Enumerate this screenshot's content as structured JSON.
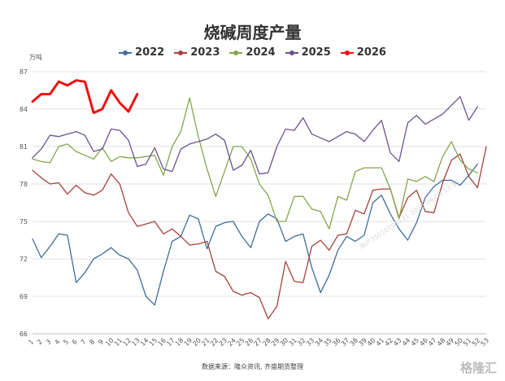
{
  "chart_data": {
    "type": "line",
    "title": "烧碱周度产量",
    "unit_label": "万吨",
    "ylim": [
      66,
      87
    ],
    "y_ticks": [
      66,
      69,
      72,
      75,
      78,
      81,
      84,
      87
    ],
    "x_ticks": [
      "1",
      "2",
      "3",
      "4",
      "5",
      "6",
      "7",
      "8",
      "9",
      "10",
      "11",
      "12",
      "13",
      "14",
      "15",
      "16",
      "17",
      "18",
      "19",
      "20",
      "21",
      "22",
      "23",
      "24",
      "25",
      "26",
      "27",
      "28",
      "29",
      "30",
      "31",
      "32",
      "33",
      "34",
      "35",
      "36",
      "37",
      "38",
      "39",
      "40",
      "41",
      "42",
      "43",
      "44",
      "45",
      "46",
      "47",
      "48",
      "49",
      "50",
      "51",
      "52",
      "53"
    ],
    "grid": "horizontal",
    "legend_position": "top",
    "series": [
      {
        "name": "2022",
        "color": "#3f6e9c",
        "width": 1.3,
        "values": [
          73.6,
          72.1,
          73.0,
          74.0,
          73.9,
          70.1,
          70.9,
          72.0,
          72.4,
          72.9,
          72.3,
          72.0,
          71.1,
          69.0,
          68.3,
          71.0,
          73.4,
          73.8,
          75.5,
          75.2,
          72.8,
          74.6,
          74.9,
          75.0,
          73.8,
          72.9,
          75.0,
          75.6,
          75.2,
          73.4,
          73.8,
          74.0,
          71.3,
          69.3,
          70.7,
          72.7,
          73.8,
          73.4,
          73.9,
          76.5,
          77.1,
          75.6,
          74.4,
          73.5,
          74.9,
          76.9,
          77.8,
          78.3,
          78.3,
          77.9,
          78.7,
          79.6
        ]
      },
      {
        "name": "2023",
        "color": "#a5423c",
        "width": 1.3,
        "values": [
          79.1,
          78.5,
          78.0,
          78.1,
          77.2,
          77.9,
          77.3,
          77.1,
          77.5,
          78.8,
          78.0,
          75.7,
          74.6,
          74.8,
          75.0,
          74.0,
          74.4,
          73.8,
          73.1,
          73.2,
          73.4,
          71.0,
          70.6,
          69.4,
          69.1,
          69.3,
          68.9,
          67.2,
          68.2,
          71.8,
          70.2,
          70.1,
          73.0,
          73.5,
          72.7,
          73.9,
          74.0,
          75.9,
          75.6,
          77.5,
          77.6,
          77.6,
          75.3,
          76.9,
          77.5,
          75.8,
          75.7,
          78.1,
          79.9,
          80.4,
          78.6,
          77.7,
          81.0
        ]
      },
      {
        "name": "2024",
        "color": "#86a44b",
        "width": 1.3,
        "values": [
          80.0,
          79.8,
          79.7,
          81.0,
          81.2,
          80.6,
          80.3,
          80.0,
          80.9,
          79.8,
          80.2,
          80.1,
          80.1,
          80.2,
          80.3,
          78.7,
          81.0,
          82.2,
          84.9,
          81.8,
          79.2,
          77.0,
          79.0,
          81.0,
          81.0,
          80.0,
          78.0,
          77.1,
          75.0,
          75.0,
          77.0,
          77.0,
          76.0,
          75.8,
          74.4,
          77.0,
          76.7,
          79.0,
          79.3,
          79.3,
          79.3,
          77.6,
          75.2,
          78.4,
          78.2,
          78.6,
          78.2,
          80.2,
          81.4,
          79.9,
          79.2,
          78.9
        ]
      },
      {
        "name": "2025",
        "color": "#6a5391",
        "width": 1.3,
        "values": [
          80.1,
          80.8,
          81.9,
          81.8,
          82.0,
          82.2,
          81.9,
          80.6,
          80.8,
          82.4,
          82.3,
          81.5,
          79.4,
          79.6,
          80.9,
          79.2,
          79.0,
          80.8,
          81.2,
          81.4,
          81.6,
          82.0,
          81.5,
          79.1,
          79.5,
          80.7,
          78.8,
          78.9,
          81.0,
          82.4,
          82.3,
          83.3,
          82.0,
          81.7,
          81.4,
          81.8,
          82.2,
          82.0,
          81.4,
          82.3,
          83.1,
          80.5,
          79.8,
          82.9,
          83.5,
          82.8,
          83.2,
          83.6,
          84.3,
          85.0,
          83.1,
          84.2
        ]
      },
      {
        "name": "2026",
        "color": "#ee1111",
        "width": 3,
        "values": [
          84.6,
          85.2,
          85.2,
          86.2,
          85.9,
          86.3,
          86.2,
          83.7,
          84.0,
          85.5,
          84.5,
          83.8,
          85.2
        ]
      }
    ]
  },
  "source": "数据来源：隆众资讯, 齐盛期货整理",
  "watermark_id": "用户35010795131 2026-04-08 13:15",
  "watermark_logo": "格隆汇"
}
